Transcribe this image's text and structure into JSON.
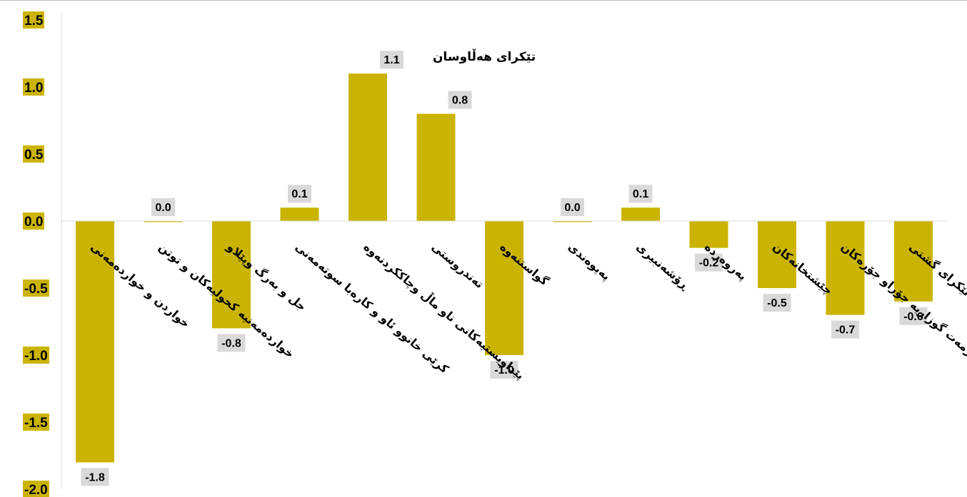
{
  "chart_data": {
    "type": "bar",
    "title": "تێکرای هەڵاوسان",
    "categories": [
      "خواردن و خواردەمەنی",
      "خواردەمەنیە کحولیەکان و توتن",
      "جل و بەرگ وپێلاو",
      "کرێی خانوو ئاو و کارەبا سوتەمەنی",
      "پێداویستیەکانی ناو ماڵ وچاککردنەوە",
      "تەندروستی",
      "گواستنەوە",
      "پەیوەندی",
      "ڕۆشەنبیری",
      "پەروەردە",
      "چێشتخانەکان",
      "شتومەک و خزمەت گوزاریە جۆراو جۆرەکان",
      "تێکرای گشتی"
    ],
    "values": [
      -1.8,
      0.0,
      -0.8,
      0.1,
      1.1,
      0.8,
      -1.0,
      0.0,
      0.1,
      -0.2,
      -0.5,
      -0.7,
      -0.6
    ],
    "data_labels": [
      "-1.8",
      "0.0",
      "-0.8",
      "0.1",
      "1.1",
      "0.8",
      "-1.0",
      "0.0",
      "0.1",
      "-0.2",
      "-0.5",
      "-0.7",
      "-0.6"
    ],
    "y_ticks": [
      "1.5",
      "1.0",
      "0.5",
      "0.0",
      "-0.5",
      "-1.0",
      "-1.5",
      "-2.0"
    ],
    "ylim": [
      -2.0,
      1.5
    ],
    "xlabel": "",
    "ylabel": "",
    "grid": false,
    "colors": {
      "bar": "#cbb401",
      "tick_label_bg": "#cbb401",
      "data_label_bg": "#d9d9d9",
      "axis": "#d9d9d9",
      "text": "#000000"
    }
  }
}
